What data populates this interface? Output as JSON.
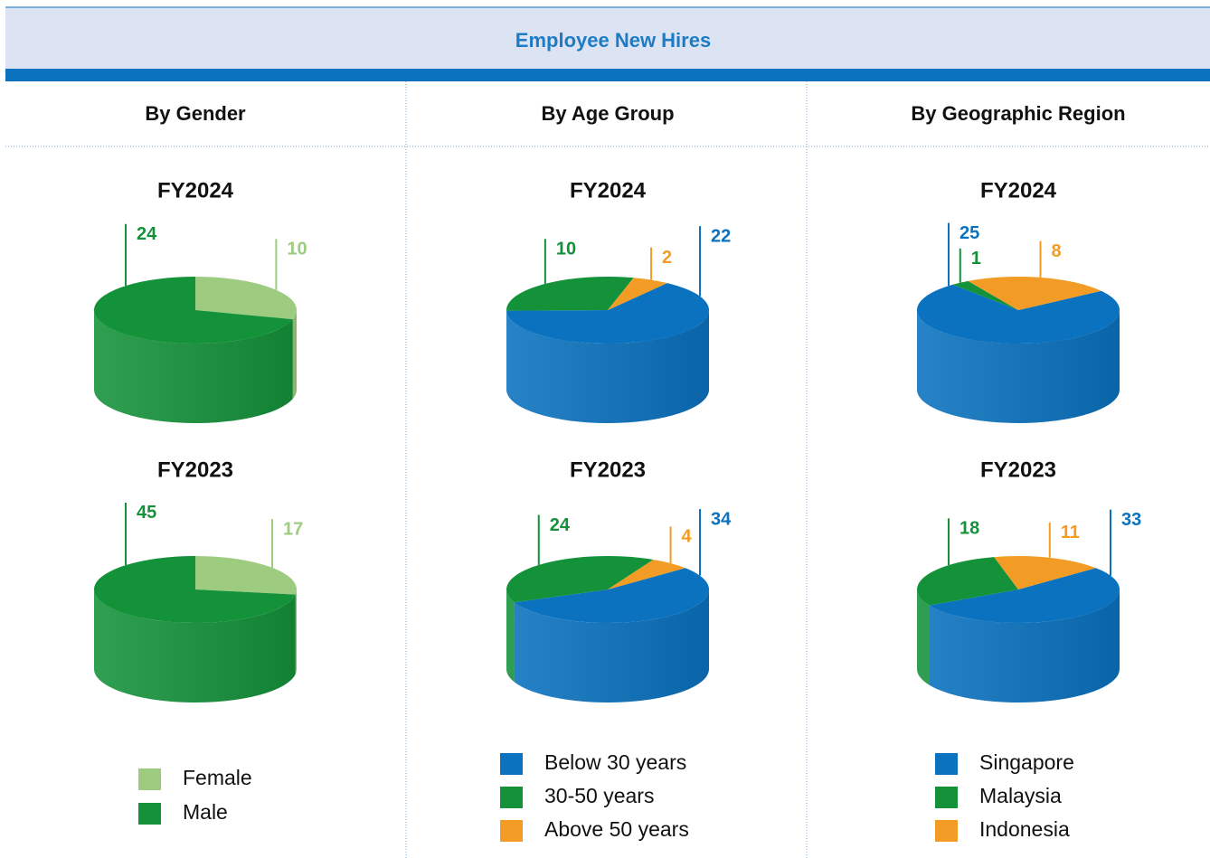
{
  "title": "Employee New Hires",
  "chart_data": [
    {
      "type": "pie",
      "title": "By Gender",
      "categories": [
        "Female",
        "Male"
      ],
      "colors": [
        "#9dcc80",
        "#14923a"
      ],
      "series": [
        {
          "name": "FY2024",
          "values": [
            10,
            24
          ]
        },
        {
          "name": "FY2023",
          "values": [
            17,
            45
          ]
        }
      ]
    },
    {
      "type": "pie",
      "title": "By Age Group",
      "categories": [
        "Below 30 years",
        "30-50 years",
        "Above 50 years"
      ],
      "colors": [
        "#0a72bf",
        "#14923a",
        "#f39c25"
      ],
      "series": [
        {
          "name": "FY2024",
          "values": [
            22,
            10,
            2
          ]
        },
        {
          "name": "FY2023",
          "values": [
            34,
            24,
            4
          ]
        }
      ]
    },
    {
      "type": "pie",
      "title": "By Geographic Region",
      "categories": [
        "Singapore",
        "Malaysia",
        "Indonesia"
      ],
      "colors": [
        "#0a72bf",
        "#14923a",
        "#f39c25"
      ],
      "series": [
        {
          "name": "FY2024",
          "values": [
            25,
            1,
            8
          ]
        },
        {
          "name": "FY2023",
          "values": [
            33,
            18,
            11
          ]
        }
      ]
    }
  ]
}
